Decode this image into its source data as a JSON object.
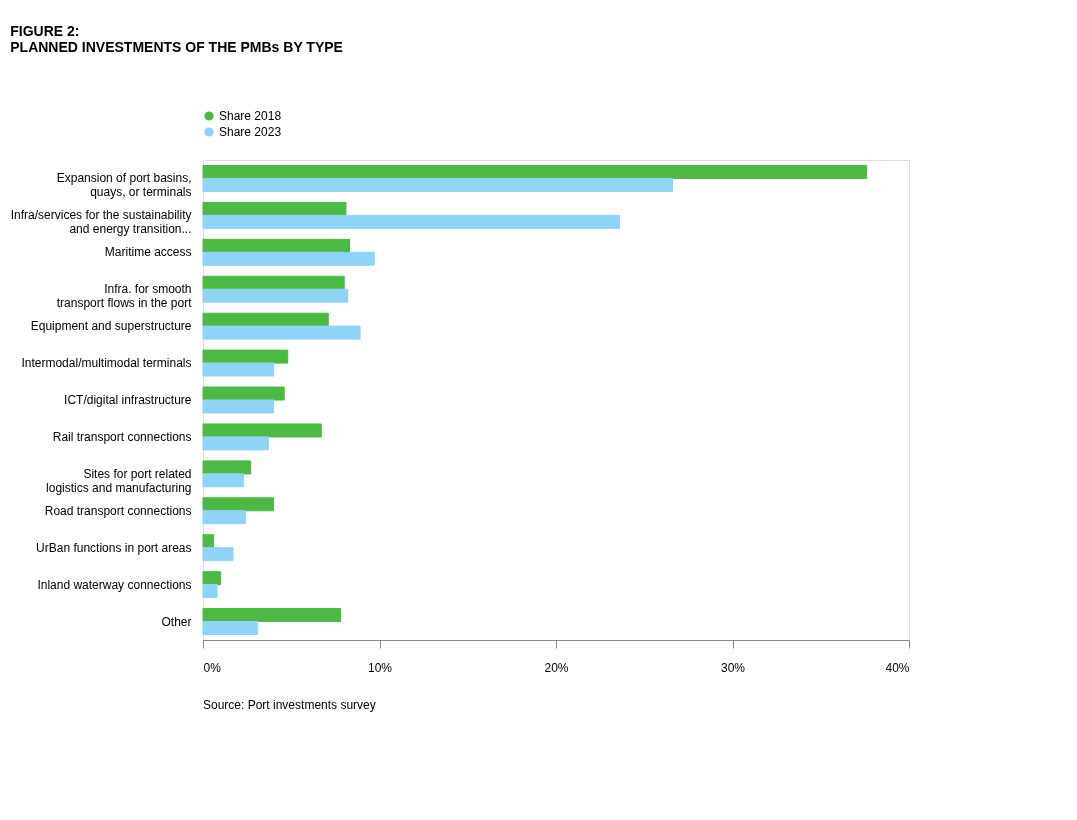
{
  "chart_data": {
    "type": "bar",
    "orientation": "horizontal",
    "title": "FIGURE 2:",
    "subtitle": "PLANNED INVESTMENTS OF THE PMBs BY TYPE",
    "categories": [
      "Expansion of port basins,\nquays, or terminals",
      "Infra/services for the sustainability\nand energy transition...",
      "Maritime access",
      "Infra. for smooth\ntransport flows in the port",
      "Equipment and superstructure",
      "Intermodal/multimodal terminals",
      "ICT/digital infrastructure",
      "Rail transport connections",
      "Sites for port related\nlogistics and manufacturing",
      "Road transport connections",
      "UrBan functions in port areas",
      "Inland waterway connections",
      "Other"
    ],
    "series": [
      {
        "name": "Share 2018",
        "color": "#4cb944",
        "values": [
          37.6,
          8.1,
          8.3,
          8.0,
          7.1,
          4.8,
          4.6,
          6.7,
          2.7,
          4.0,
          0.6,
          1.0,
          7.8
        ]
      },
      {
        "name": "Share 2023",
        "color": "#8fd4f7",
        "values": [
          26.6,
          23.6,
          9.7,
          8.2,
          8.9,
          4.0,
          4.0,
          3.7,
          2.3,
          2.4,
          1.7,
          0.8,
          3.1
        ]
      }
    ],
    "xlim": [
      0,
      40
    ],
    "xticks": [
      {
        "value": 0,
        "label": "0%"
      },
      {
        "value": 10,
        "label": "10%"
      },
      {
        "value": 20,
        "label": "20%"
      },
      {
        "value": 30,
        "label": "30%"
      },
      {
        "value": 40,
        "label": "40%"
      }
    ],
    "legend": "top left",
    "grid": false,
    "annotations": [
      "Source: Port investments survey"
    ]
  }
}
